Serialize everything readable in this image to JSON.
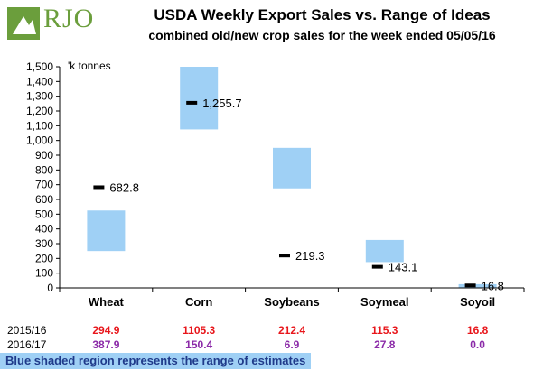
{
  "header": {
    "logo_text": "RJO",
    "title": "USDA Weekly Export Sales vs. Range of Ideas",
    "subtitle": "combined old/new crop sales for the week ended 05/05/16"
  },
  "chart_data": {
    "type": "bar",
    "unit_label": "'k tonnes",
    "categories": [
      "Wheat",
      "Corn",
      "Soybeans",
      "Soymeal",
      "Soyoil"
    ],
    "ranges": [
      [
        250,
        525
      ],
      [
        1075,
        1500
      ],
      [
        675,
        950
      ],
      [
        175,
        325
      ],
      [
        0,
        25
      ]
    ],
    "actuals": [
      682.8,
      1255.7,
      219.3,
      143.1,
      16.8
    ],
    "actual_labels": [
      "682.8",
      "1,255.7",
      "219.3",
      "143.1",
      "16.8"
    ],
    "ylim": [
      0,
      1500
    ],
    "yticks": [
      0,
      100,
      200,
      300,
      400,
      500,
      600,
      700,
      800,
      900,
      1000,
      1100,
      1200,
      1300,
      1400,
      1500
    ],
    "ytick_labels": [
      "0",
      "100",
      "200",
      "300",
      "400",
      "500",
      "600",
      "700",
      "800",
      "900",
      "1,000",
      "1,100",
      "1,200",
      "1,300",
      "1,400",
      "1,500"
    ],
    "grid": false,
    "range_color": "#9fd0f5",
    "marker_color": "#000000"
  },
  "table": {
    "rows": [
      {
        "label": "2015/16",
        "color": "#e8161b",
        "values": [
          "294.9",
          "1105.3",
          "212.4",
          "115.3",
          "16.8"
        ]
      },
      {
        "label": "2016/17",
        "color": "#8b2aa8",
        "values": [
          "387.9",
          "150.4",
          "6.9",
          "27.8",
          "0.0"
        ]
      }
    ]
  },
  "footnote": "Blue shaded region represents the range of estimates",
  "colors": {
    "logo_green": "#6b9e3c",
    "footnote_text": "#1f3a8a"
  }
}
